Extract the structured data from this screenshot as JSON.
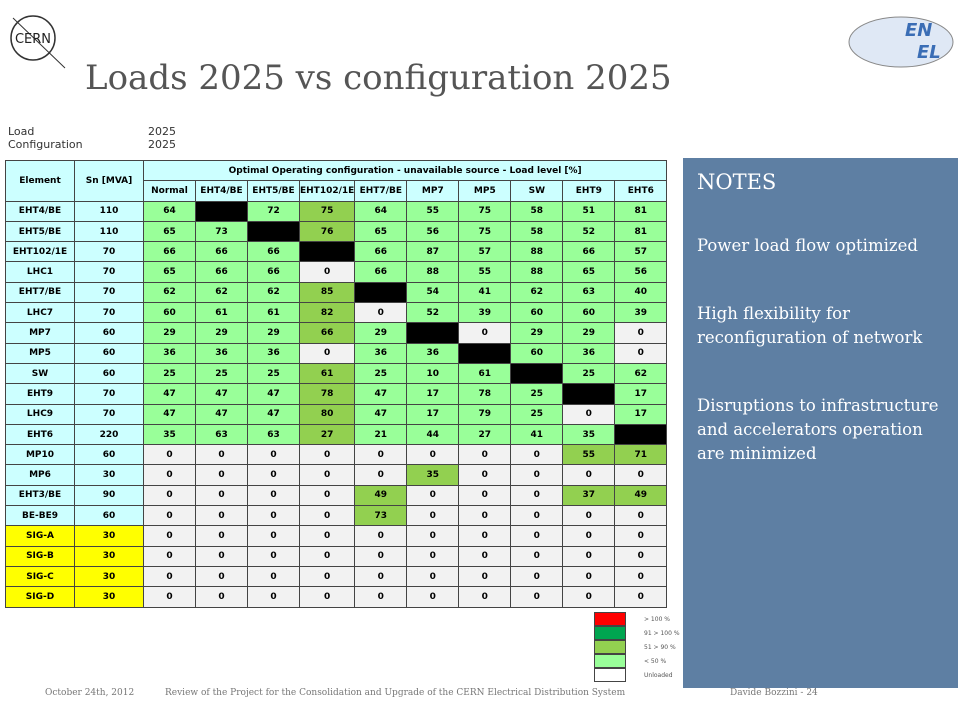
{
  "logos": {
    "cern": "CERN",
    "enel_top": "EN",
    "enel_bottom": "EL"
  },
  "header": {
    "title": "Loads 2025 vs configuration 2025"
  },
  "info": [
    [
      "Load",
      "2025"
    ],
    [
      "Configuration",
      "2025"
    ]
  ],
  "table": {
    "headers": [
      "Element",
      "Sn [MVA]"
    ],
    "group_header": "Optimal Operating configuration - unavailable source - Load level [%]",
    "columns": [
      "Normal",
      "EHT4/BE",
      "EHT5/BE",
      "EHT102/1E",
      "EHT7/BE",
      "MP7",
      "MP5",
      "SW",
      "EHT9",
      "EHT6"
    ],
    "rows": [
      {
        "element": "EHT4/BE",
        "sn": 110,
        "values": [
          64,
          null,
          72,
          75,
          64,
          55,
          75,
          58,
          51,
          81
        ]
      },
      {
        "element": "EHT5/BE",
        "sn": 110,
        "values": [
          65,
          73,
          null,
          76,
          65,
          56,
          75,
          58,
          52,
          81
        ]
      },
      {
        "element": "EHT102/1E",
        "sn": 70,
        "values": [
          66,
          66,
          66,
          null,
          66,
          87,
          57,
          88,
          66,
          57
        ]
      },
      {
        "element": "LHC1",
        "sn": 70,
        "values": [
          65,
          66,
          66,
          0,
          66,
          88,
          55,
          88,
          65,
          56
        ]
      },
      {
        "element": "EHT7/BE",
        "sn": 70,
        "values": [
          62,
          62,
          62,
          85,
          null,
          54,
          41,
          62,
          63,
          40
        ]
      },
      {
        "element": "LHC7",
        "sn": 70,
        "values": [
          60,
          61,
          61,
          82,
          0,
          52,
          39,
          60,
          60,
          39
        ]
      },
      {
        "element": "MP7",
        "sn": 60,
        "values": [
          29,
          29,
          29,
          66,
          29,
          null,
          0,
          29,
          29,
          0
        ]
      },
      {
        "element": "MP5",
        "sn": 60,
        "values": [
          36,
          36,
          36,
          0,
          36,
          36,
          null,
          60,
          36,
          0
        ]
      },
      {
        "element": "SW",
        "sn": 60,
        "values": [
          25,
          25,
          25,
          61,
          25,
          10,
          61,
          null,
          25,
          62
        ]
      },
      {
        "element": "EHT9",
        "sn": 70,
        "values": [
          47,
          47,
          47,
          78,
          47,
          17,
          78,
          25,
          null,
          17
        ]
      },
      {
        "element": "LHC9",
        "sn": 70,
        "values": [
          47,
          47,
          47,
          80,
          47,
          17,
          79,
          25,
          0,
          17
        ]
      },
      {
        "element": "EHT6",
        "sn": 220,
        "values": [
          35,
          63,
          63,
          27,
          21,
          44,
          27,
          41,
          35,
          null
        ]
      },
      {
        "element": "MP10",
        "sn": 60,
        "values": [
          0,
          0,
          0,
          0,
          0,
          0,
          0,
          0,
          55,
          71
        ]
      },
      {
        "element": "MP6",
        "sn": 30,
        "values": [
          0,
          0,
          0,
          0,
          0,
          35,
          0,
          0,
          0,
          0
        ]
      },
      {
        "element": "EHT3/BE",
        "sn": 90,
        "values": [
          0,
          0,
          0,
          0,
          49,
          0,
          0,
          0,
          37,
          49
        ]
      },
      {
        "element": "BE-BE9",
        "sn": 60,
        "values": [
          0,
          0,
          0,
          0,
          73,
          0,
          0,
          0,
          0,
          0
        ]
      },
      {
        "element": "SIG-A",
        "sn": 30,
        "values": [
          0,
          0,
          0,
          0,
          0,
          0,
          0,
          0,
          0,
          0
        ]
      },
      {
        "element": "SIG-B",
        "sn": 30,
        "values": [
          0,
          0,
          0,
          0,
          0,
          0,
          0,
          0,
          0,
          0
        ]
      },
      {
        "element": "SIG-C",
        "sn": 30,
        "values": [
          0,
          0,
          0,
          0,
          0,
          0,
          0,
          0,
          0,
          0
        ]
      },
      {
        "element": "SIG-D",
        "sn": 30,
        "values": [
          0,
          0,
          0,
          0,
          0,
          0,
          0,
          0,
          0,
          0
        ]
      }
    ]
  },
  "legend": [
    {
      "label": "> 100 %",
      "color": "#ff0000"
    },
    {
      "label": "91 > 100 %",
      "color": "#00a550"
    },
    {
      "label": "51 > 90 %",
      "color": "#92d050"
    },
    {
      "label": "< 50 %",
      "color": "#99ff99"
    },
    {
      "label": "Unloaded",
      "color": "#ffffff"
    }
  ],
  "notes": {
    "title": "NOTES",
    "items": [
      "Power load flow optimized",
      "High flexibility for reconfiguration of network",
      "Disruptions to infrastructure and accelerators operation are minimized"
    ]
  },
  "footer": {
    "date": "October 24th, 2012",
    "subject": "Review of the Project for the Consolidation and Upgrade of the CERN Electrical Distribution System",
    "author": "Davide Bozzini - 24"
  }
}
